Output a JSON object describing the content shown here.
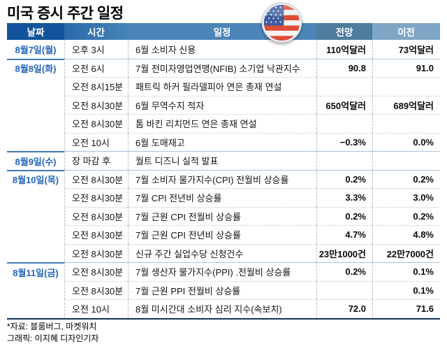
{
  "title": "미국 증시 주간 일정",
  "chart_data": {
    "type": "table",
    "title": "미국 증시 주간 일정",
    "columns": [
      "날짜",
      "시간",
      "일정",
      "전망",
      "이전"
    ],
    "rows": [
      {
        "date": "8월7일(월)",
        "time": "오후 3시",
        "event": "6월 소비자 신용",
        "forecast": "110억달러",
        "previous": "73억달러",
        "group_start": true
      },
      {
        "date": "8월8일(화)",
        "time": "오전 6시",
        "event": "7월 전미자영업연맹(NFIB) 소기업 낙관지수",
        "forecast": "90.8",
        "previous": "91.0",
        "group_start": true
      },
      {
        "date": "",
        "time": "오전 8시15분",
        "event": "패트릭 하커 필라델피아 연은 총재 연설",
        "forecast": "",
        "previous": "",
        "group_start": false
      },
      {
        "date": "",
        "time": "오전 8시30분",
        "event": "6월 무역수지 적자",
        "forecast": "650억달러",
        "previous": "689억달러",
        "group_start": false
      },
      {
        "date": "",
        "time": "오전 8시30분",
        "event": "톰 바킨 리치먼드 연은 총재 연설",
        "forecast": "",
        "previous": "",
        "group_start": false
      },
      {
        "date": "",
        "time": "오전 10시",
        "event": "6월 도매재고",
        "forecast": "−0.3%",
        "previous": "0.0%",
        "group_start": false
      },
      {
        "date": "8월9일(수)",
        "time": "장 마감 후",
        "event": "월트 디즈니 실적 발표",
        "forecast": "",
        "previous": "",
        "group_start": true
      },
      {
        "date": "8월10일(목)",
        "time": "오전 8시30분",
        "event": "7월 소비자 물가지수(CPI) 전월비 상승률",
        "forecast": "0.2%",
        "previous": "0.2%",
        "group_start": true
      },
      {
        "date": "",
        "time": "오전 8시30분",
        "event": "7월 CPI 전년비 상승률",
        "forecast": "3.3%",
        "previous": "3.0%",
        "group_start": false
      },
      {
        "date": "",
        "time": "오전 8시30분",
        "event": "7월 근원 CPI 전월비 상승률",
        "forecast": "0.2%",
        "previous": "0.2%",
        "group_start": false
      },
      {
        "date": "",
        "time": "오전 8시30분",
        "event": "7월 근원 CPI 전년비 상승률",
        "forecast": "4.7%",
        "previous": "4.8%",
        "group_start": false
      },
      {
        "date": "",
        "time": "오전 8시30분",
        "event": "신규 주간 실업수당 신청건수",
        "forecast": "23만1000건",
        "previous": "22만7000건",
        "group_start": false
      },
      {
        "date": "8월11일(금)",
        "time": "오전 8시30분",
        "event": "7월 생산자 물가지수(PPI) .전월비 상승률",
        "forecast": "0.2%",
        "previous": "0.1%",
        "group_start": true
      },
      {
        "date": "",
        "time": "오전 8시30분",
        "event": "7월 근원 PPI 전월비 상승률",
        "forecast": "",
        "previous": "0.1%",
        "group_start": false
      },
      {
        "date": "",
        "time": "오전 10시",
        "event": "8월 미시간대 소비자 심리 지수(속보치)",
        "forecast": "72.0",
        "previous": "71.6",
        "group_start": false
      }
    ],
    "legend": "none",
    "grid": "dotted row separators, dashed column separators"
  },
  "footer": {
    "source": "*자료: 블룸버그, 마켓워치",
    "credit": "그래픽: 이지혜 디자인기자"
  },
  "icons": {
    "flag": "us-flag-icon"
  },
  "colors": {
    "hdr-date": "#12549c",
    "hdr-time-a": "#2a69ab",
    "hdr-time-b": "#4683b7",
    "hdr-event": "#4c86b9",
    "hdr-forecast": "#4e7c9e",
    "hdr-previous": "#7fa6c6",
    "date-text": "#2465b9",
    "group-line": "#4179b4",
    "group-line-light": "#aac2d8",
    "body-line": "#c9c9c9",
    "table-bottom": "#143058",
    "flag-canton": "#3d5c9e",
    "flag-red": "#df4d38",
    "flag-white": "#f4f4f2"
  }
}
